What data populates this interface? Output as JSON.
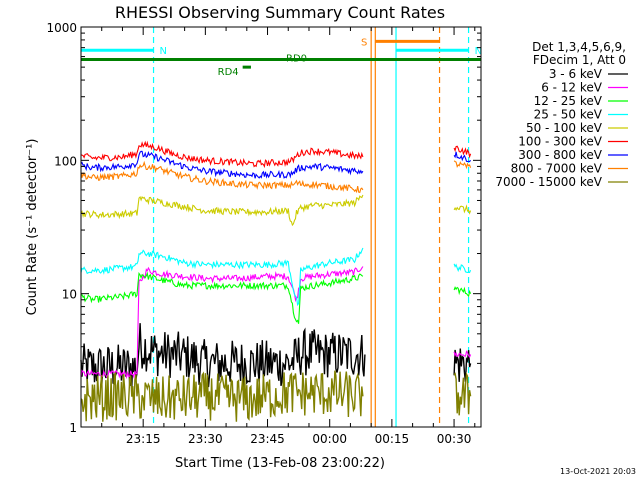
{
  "chart_data": {
    "type": "line",
    "title": "RHESSI Observing Summary Count Rates",
    "xlabel": "Start Time (13-Feb-08 23:00:22)",
    "ylabel": "Count Rate (s⁻¹ detector⁻¹)",
    "yscale": "log",
    "ylim": [
      1,
      1000
    ],
    "xlim_minutes": [
      0,
      96.5
    ],
    "x_ticks": [
      {
        "label": "23:15",
        "minute": 15
      },
      {
        "label": "23:30",
        "minute": 30
      },
      {
        "label": "23:45",
        "minute": 45
      },
      {
        "label": "00:00",
        "minute": 60
      },
      {
        "label": "00:15",
        "minute": 75
      },
      {
        "label": "00:30",
        "minute": 90
      }
    ],
    "y_ticks": [
      {
        "label": "1",
        "value": 1
      },
      {
        "label": "10",
        "value": 10
      },
      {
        "label": "100",
        "value": 100
      },
      {
        "label": "1000",
        "value": 1000
      }
    ],
    "legend_header": [
      "Det 1,3,4,5,6,9,",
      "FDecim 1, Att 0"
    ],
    "legend_position": "right",
    "series": [
      {
        "name": "3 - 6 keV",
        "color": "#000000",
        "x": [
          0,
          13.5,
          14,
          18,
          25,
          30,
          38,
          45,
          50,
          52,
          53,
          56,
          59,
          62,
          66,
          68.5,
          69,
          89.5,
          90,
          94,
          94.5
        ],
        "y": [
          2.8,
          2.8,
          4.2,
          3.6,
          3.4,
          3.0,
          3.0,
          3.0,
          3.0,
          3.2,
          3.6,
          3.6,
          3.5,
          3.5,
          3.5,
          3.5,
          null,
          null,
          3.0,
          3.0,
          null
        ]
      },
      {
        "name": "6 - 12 keV",
        "color": "#ff00ff",
        "x": [
          0,
          13.5,
          14,
          16,
          20,
          25,
          30,
          38,
          45,
          50,
          52,
          53,
          56,
          60,
          66,
          68,
          68.5,
          89.5,
          90,
          94,
          94.5
        ],
        "y": [
          2.5,
          2.5,
          12,
          15,
          14,
          13.5,
          13,
          13,
          13.5,
          13.5,
          9,
          13,
          13.5,
          14,
          14.5,
          16,
          null,
          null,
          3.5,
          3.5,
          null
        ]
      },
      {
        "name": "12 - 25 keV",
        "color": "#00ff00",
        "x": [
          0,
          3,
          10,
          13.5,
          14,
          16,
          20,
          25,
          30,
          38,
          45,
          50,
          51.5,
          52.5,
          53,
          56,
          60,
          66,
          68,
          68.5,
          89.5,
          90,
          94,
          94.5
        ],
        "y": [
          9.5,
          9.0,
          9.5,
          10,
          14,
          13.5,
          12.5,
          11.5,
          11.5,
          11.5,
          11.5,
          11.5,
          7,
          6.0,
          11,
          11.5,
          12,
          13,
          13.5,
          null,
          null,
          11,
          10,
          null
        ]
      },
      {
        "name": "25 - 50 keV",
        "color": "#00ffff",
        "x": [
          0,
          5,
          13.5,
          14,
          16,
          20,
          25,
          30,
          38,
          45,
          50,
          51.5,
          52.5,
          53,
          56,
          60,
          66,
          68,
          68.5,
          89.5,
          90,
          94,
          94.5
        ],
        "y": [
          15,
          15,
          16,
          20,
          20,
          19,
          17,
          16.5,
          16.5,
          16.5,
          17,
          10,
          8,
          15,
          16,
          17,
          18,
          22,
          null,
          null,
          16,
          15,
          null
        ]
      },
      {
        "name": "50 - 100 keV",
        "color": "#cccc00",
        "x": [
          0,
          5,
          13.5,
          14,
          17,
          20,
          25,
          30,
          38,
          45,
          50,
          51,
          52,
          53,
          56,
          60,
          66,
          68,
          68.5,
          89.5,
          90,
          94,
          94.5
        ],
        "y": [
          40,
          39,
          40,
          52,
          50,
          48,
          45,
          42,
          41,
          41,
          42,
          32,
          40,
          44,
          46,
          46,
          48,
          55,
          null,
          null,
          45,
          42,
          null
        ]
      },
      {
        "name": "100 - 300 keV",
        "color": "#ff0000",
        "x": [
          0,
          3,
          10,
          13.5,
          14,
          18,
          22,
          26,
          30,
          38,
          42,
          46,
          50,
          51,
          52,
          53,
          56,
          60,
          64,
          68,
          68.5,
          89.5,
          90,
          94,
          94.5
        ],
        "y": [
          108,
          104,
          106,
          112,
          132,
          125,
          112,
          104,
          100,
          96,
          94,
          96,
          97,
          100,
          108,
          114,
          118,
          115,
          110,
          106,
          null,
          null,
          126,
          112,
          null
        ]
      },
      {
        "name": "300 - 800 keV",
        "color": "#0000ff",
        "x": [
          0,
          3,
          10,
          13.5,
          14,
          18,
          22,
          26,
          30,
          38,
          42,
          46,
          50,
          51,
          52,
          53,
          56,
          60,
          64,
          68,
          68.5,
          89.5,
          90,
          94,
          94.5
        ],
        "y": [
          92,
          88,
          90,
          95,
          112,
          106,
          96,
          88,
          83,
          79,
          77,
          78,
          78,
          80,
          85,
          88,
          90,
          88,
          85,
          83,
          null,
          null,
          112,
          100,
          null
        ]
      },
      {
        "name": "800 - 7000 keV",
        "color": "#ff8000",
        "x": [
          0,
          3,
          10,
          13.5,
          14,
          18,
          22,
          26,
          30,
          38,
          42,
          46,
          50,
          51,
          52,
          53,
          56,
          60,
          64,
          68,
          68.5,
          89.5,
          90,
          94,
          94.5
        ],
        "y": [
          78,
          74,
          76,
          80,
          92,
          88,
          80,
          74,
          70,
          66,
          65,
          65,
          65,
          65,
          68,
          66,
          66,
          64,
          62,
          60,
          null,
          null,
          95,
          88,
          null
        ]
      },
      {
        "name": "7000 - 15000 keV",
        "color": "#808000",
        "x": [
          0,
          10,
          20,
          30,
          40,
          50,
          60,
          68,
          68.5,
          89.5,
          90,
          94,
          94.5
        ],
        "y": [
          1.6,
          1.7,
          1.6,
          1.7,
          1.6,
          1.8,
          1.8,
          1.7,
          null,
          null,
          1.7,
          1.7,
          null
        ]
      }
    ],
    "annotations": [
      {
        "label": "N",
        "color": "#00ffff",
        "x_start": 0,
        "x_end": 17.5,
        "y": 670
      },
      {
        "label": "N",
        "color": "#00ffff",
        "x_start": 76,
        "x_end": 93.5,
        "y": 670
      },
      {
        "label": "S",
        "color": "#ff8000",
        "x_start": 71,
        "x_end": 86.5,
        "y": 780
      },
      {
        "label": "RD0",
        "color": "#008000",
        "x_start": 0,
        "x_end": 96.5,
        "y": 570
      },
      {
        "label": "RD4",
        "color": "#008000",
        "x_start": 39,
        "x_end": 41,
        "y": 500
      }
    ],
    "vlines": [
      {
        "x": 17.5,
        "color": "#00ffff",
        "style": "dashed"
      },
      {
        "x": 70,
        "color": "#ff8000",
        "style": "solid"
      },
      {
        "x": 71,
        "color": "#ff8000",
        "style": "solid"
      },
      {
        "x": 76,
        "color": "#00ffff",
        "style": "solid"
      },
      {
        "x": 86.5,
        "color": "#ff8000",
        "style": "dashed"
      },
      {
        "x": 93.5,
        "color": "#00ffff",
        "style": "dashed"
      }
    ],
    "footer": "13-Oct-2021 20:03"
  }
}
